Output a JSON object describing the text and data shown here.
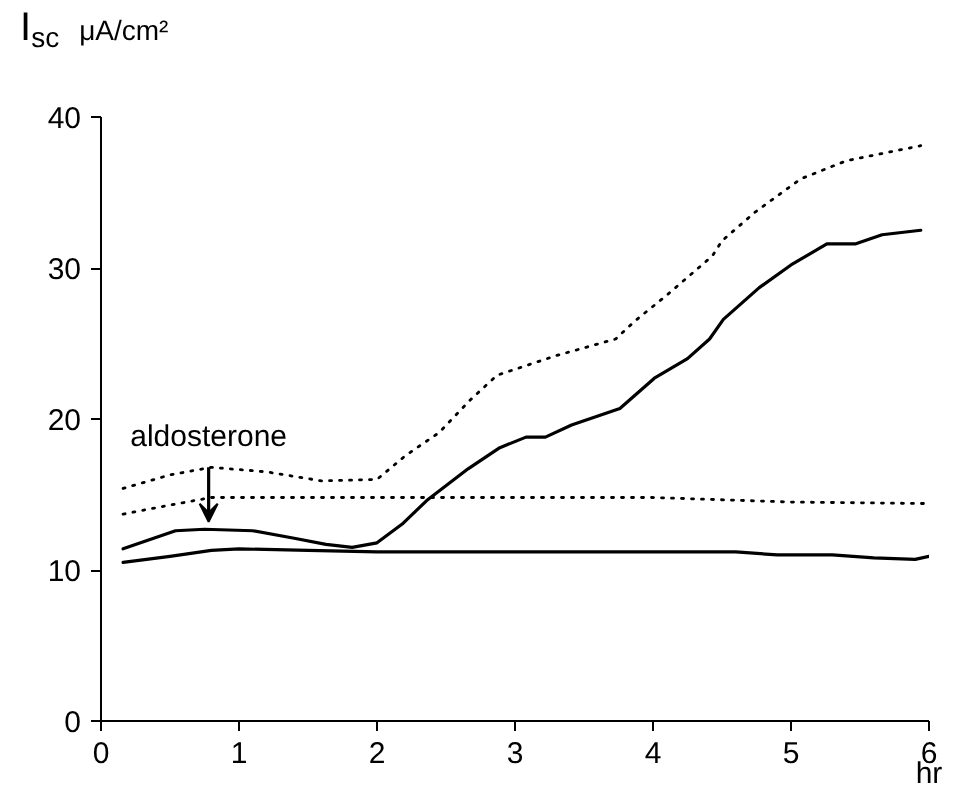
{
  "chart_data": {
    "type": "line",
    "ylabel": "I$_{sc}$ μA/cm²",
    "xlabel": "hr",
    "xlim": [
      0,
      6
    ],
    "ylim": [
      0,
      40
    ],
    "xticks": [
      0,
      1,
      2,
      3,
      4,
      5,
      6
    ],
    "yticks": [
      0,
      10,
      20,
      30,
      40
    ],
    "grid": false,
    "annotations": [
      {
        "text": "aldosterone",
        "x": 0.78,
        "y": 13.2
      }
    ],
    "series": [
      {
        "color": "#000000",
        "line_style": "solid",
        "x": [
          0.16,
          0.54,
          0.75,
          1.1,
          1.4,
          1.63,
          1.82,
          2.0,
          2.19,
          2.36,
          2.66,
          2.89,
          3.08,
          3.22,
          3.41,
          3.76,
          4.01,
          4.25,
          4.41,
          4.51,
          4.77,
          5.0,
          5.26,
          5.47,
          5.66,
          5.94
        ],
        "values": [
          11.4,
          12.6,
          12.7,
          12.6,
          12.1,
          11.7,
          11.5,
          11.8,
          13.1,
          14.6,
          16.7,
          18.1,
          18.8,
          18.8,
          19.6,
          20.7,
          22.7,
          24.0,
          25.3,
          26.6,
          28.7,
          30.2,
          31.6,
          31.6,
          32.2,
          32.5
        ]
      },
      {
        "color": "#000000",
        "line_style": "solid",
        "x": [
          0.16,
          0.5,
          0.8,
          1.0,
          1.5,
          2.0,
          3.0,
          4.0,
          4.6,
          4.9,
          5.3,
          5.6,
          5.9,
          6.0
        ],
        "values": [
          10.5,
          10.9,
          11.3,
          11.4,
          11.3,
          11.2,
          11.2,
          11.2,
          11.2,
          11.0,
          11.0,
          10.8,
          10.7,
          10.9
        ]
      },
      {
        "color": "#000000",
        "line_style": "dotted",
        "x": [
          0.16,
          0.5,
          0.8,
          1.2,
          1.6,
          2.0,
          2.21,
          2.45,
          2.68,
          2.87,
          3.3,
          3.73,
          3.87,
          4.1,
          4.43,
          4.5,
          4.74,
          5.07,
          5.4,
          5.94
        ],
        "values": [
          15.4,
          16.3,
          16.8,
          16.5,
          15.9,
          16.0,
          17.6,
          19.1,
          21.3,
          22.9,
          24.2,
          25.3,
          26.5,
          28.2,
          30.8,
          31.8,
          33.7,
          35.9,
          37.1,
          38.1
        ]
      },
      {
        "color": "#000000",
        "line_style": "dotted",
        "x": [
          0.16,
          0.5,
          0.8,
          1.2,
          2.0,
          3.0,
          4.0,
          5.0,
          6.0
        ],
        "values": [
          13.7,
          14.3,
          14.8,
          14.8,
          14.8,
          14.8,
          14.8,
          14.5,
          14.4
        ]
      }
    ]
  }
}
